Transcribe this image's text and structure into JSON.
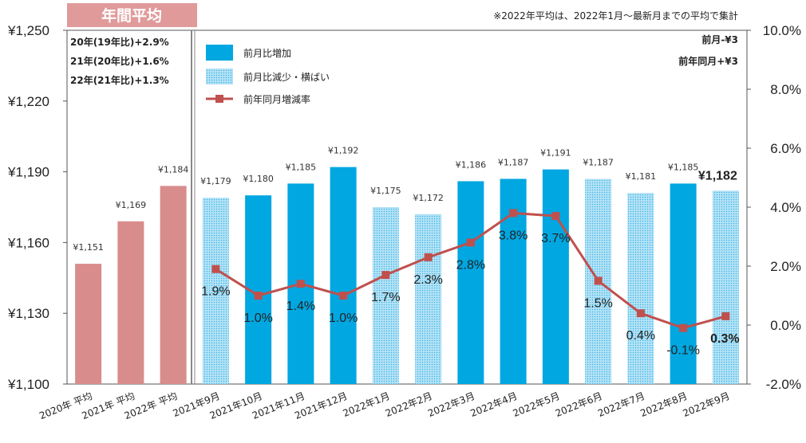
{
  "chart_data": {
    "type": "bar",
    "categories": [
      "2020年 平均",
      "2021年 平均",
      "2022年 平均",
      "2021年9月",
      "2021年10月",
      "2021年11月",
      "2021年12月",
      "2022年1月",
      "2022年2月",
      "2022年3月",
      "2022年4月",
      "2022年5月",
      "2022年6月",
      "2022年7月",
      "2022年8月",
      "2022年9月"
    ],
    "values": [
      1151,
      1169,
      1184,
      1179,
      1180,
      1185,
      1192,
      1175,
      1172,
      1186,
      1187,
      1191,
      1187,
      1181,
      1185,
      1182
    ],
    "value_labels": [
      "¥1,151",
      "¥1,169",
      "¥1,184",
      "¥1,179",
      "¥1,180",
      "¥1,185",
      "¥1,192",
      "¥1,175",
      "¥1,172",
      "¥1,186",
      "¥1,187",
      "¥1,191",
      "¥1,187",
      "¥1,181",
      "¥1,185",
      "¥1,182"
    ],
    "bar_kind": [
      "annual",
      "annual",
      "annual",
      "down",
      "up",
      "up",
      "up",
      "down",
      "down",
      "up",
      "up",
      "up",
      "down",
      "down",
      "up",
      "down"
    ],
    "line": {
      "name": "前年同月増減率",
      "start_index": 3,
      "values": [
        1.9,
        1.0,
        1.4,
        1.0,
        1.7,
        2.3,
        2.8,
        3.8,
        3.7,
        1.5,
        0.4,
        -0.1,
        0.3
      ],
      "labels": [
        "1.9%",
        "1.0%",
        "1.4%",
        "1.0%",
        "1.7%",
        "2.3%",
        "2.8%",
        "3.8%",
        "3.7%",
        "1.5%",
        "0.4%",
        "-0.1%",
        "0.3%"
      ]
    },
    "y_left": {
      "ticks": [
        "¥1,250",
        "¥1,220",
        "¥1,190",
        "¥1,160",
        "¥1,130",
        "¥1,100"
      ],
      "min": 1100,
      "max": 1250
    },
    "y_right": {
      "ticks": [
        "10.0%",
        "8.0%",
        "6.0%",
        "4.0%",
        "2.0%",
        "0.0%",
        "-2.0%"
      ],
      "min": -2,
      "max": 10
    },
    "legend": {
      "items": [
        "前月比増加",
        "前月比減少・横ばい",
        "前年同月増減率"
      ],
      "placement": "top-left"
    },
    "colors": {
      "annual": "#d98c8c",
      "up": "#00a7e1",
      "down_bg": "#b6e3f6",
      "down_dot": "#3ab4e6",
      "line": "#c0504d",
      "negative_label": "#e03030",
      "annual_header_bg": "#e09a9a"
    }
  },
  "annual_box": {
    "title": "年間平均",
    "lines": [
      "20年(19年比)+2.9%",
      "21年(20年比)+1.6%",
      "22年(21年比)+1.3%"
    ]
  },
  "notes": {
    "top": "※2022年平均は、2022年1月～最新月までの平均で集計",
    "mom": "前月-¥3",
    "yoy": "前年同月+¥3"
  }
}
